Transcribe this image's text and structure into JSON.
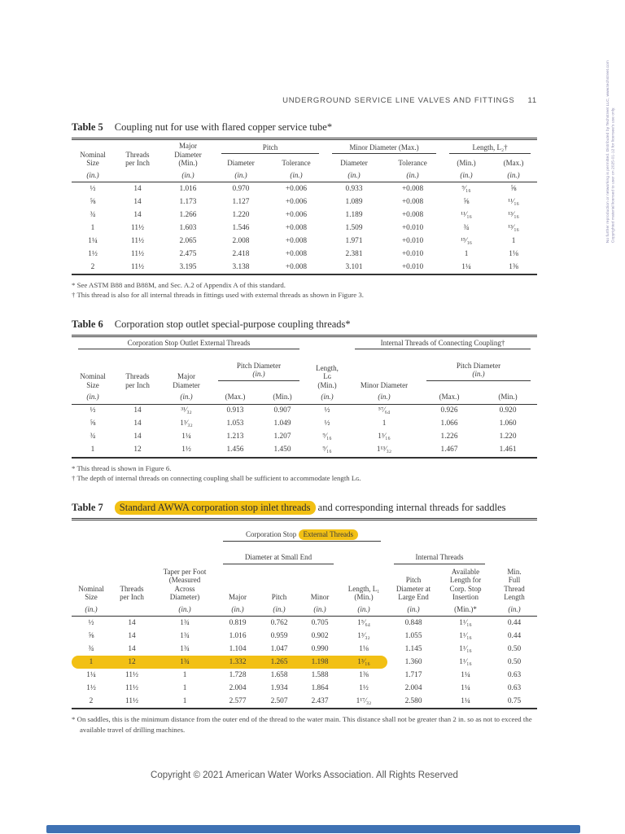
{
  "colors": {
    "highlight": "#f2c014",
    "bar": "#3f72b4"
  },
  "watermark": {
    "line1": "Copyrighted material licensed to user on 2025-01-12 for licensee's use only.",
    "line2": "No further reproduction or networking is permitted. Distributed by Techstreet LLC, www.techstreet.com"
  },
  "header": {
    "title": "UNDERGROUND SERVICE LINE VALVES AND FITTINGS",
    "page": "11"
  },
  "table5": {
    "label": "Table 5",
    "title": "Coupling nut for use with flared copper service tube*",
    "h1": [
      "Nominal\nSize",
      "Threads\nper Inch",
      "Major\nDiameter\n(Min.)",
      "Pitch",
      "Minor Diameter (Max.)",
      "Length, L₂†"
    ],
    "h2": [
      "Diameter",
      "Tolerance",
      "Diameter",
      "Tolerance",
      "(Min.)",
      "(Max.)"
    ],
    "h3": [
      "(in.)",
      "",
      "(in.)",
      "(in.)",
      "(in.)",
      "(in.)",
      "(in.)",
      "(in.)",
      "(in.)"
    ],
    "rows": [
      [
        "½",
        "14",
        "1.016",
        "0.970",
        "+0.006",
        "0.933",
        "+0.008",
        "⁹⁄₁₆",
        "⅝"
      ],
      [
        "⅝",
        "14",
        "1.173",
        "1.127",
        "+0.006",
        "1.089",
        "+0.008",
        "⅝",
        "¹¹⁄₁₆"
      ],
      [
        "¾",
        "14",
        "1.266",
        "1.220",
        "+0.006",
        "1.189",
        "+0.008",
        "¹¹⁄₁₆",
        "¹³⁄₁₆"
      ],
      [
        "1",
        "11½",
        "1.603",
        "1.546",
        "+0.008",
        "1.509",
        "+0.010",
        "¾",
        "¹³⁄₁₆"
      ],
      [
        "1¼",
        "11½",
        "2.065",
        "2.008",
        "+0.008",
        "1.971",
        "+0.010",
        "¹⁵⁄₁₆",
        "1"
      ],
      [
        "1½",
        "11½",
        "2.475",
        "2.418",
        "+0.008",
        "2.381",
        "+0.010",
        "1",
        "1⅛"
      ],
      [
        "2",
        "11½",
        "3.195",
        "3.138",
        "+0.008",
        "3.101",
        "+0.010",
        "1¼",
        "1⅜"
      ]
    ],
    "footnotes": [
      "* See ASTM B88 and B88M, and Sec. A.2 of Appendix A of this standard.",
      "† This thread is also for all internal threads in fittings used with external threads as shown in Figure 3."
    ]
  },
  "table6": {
    "label": "Table 6",
    "title": "Corporation stop outlet special-purpose coupling threads*",
    "grp_ext": "Corporation Stop Outlet External Threads",
    "grp_int": "Internal Threads of Connecting Coupling†",
    "length_label": "Length,\nLɢ\n(Min.)",
    "pd_label": "Pitch Diameter",
    "in_unit": "(in.)",
    "h2": [
      "Nominal\nSize",
      "Threads\nper Inch",
      "Major\nDiameter",
      "Minor Diameter"
    ],
    "h3": [
      "(in.)",
      "",
      "(in.)",
      "(Max.)",
      "(Min.)",
      "(in.)",
      "(in.)",
      "(Max.)",
      "(Min.)"
    ],
    "rows": [
      [
        "½",
        "14",
        "³¹⁄₃₂",
        "0.913",
        "0.907",
        "½",
        "⁵⁷⁄₆₄",
        "0.926",
        "0.920"
      ],
      [
        "⅝",
        "14",
        "1³⁄₃₂",
        "1.053",
        "1.049",
        "½",
        "1",
        "1.066",
        "1.060"
      ],
      [
        "¾",
        "14",
        "1¼",
        "1.213",
        "1.207",
        "⁹⁄₁₆",
        "1³⁄₁₆",
        "1.226",
        "1.220"
      ],
      [
        "1",
        "12",
        "1½",
        "1.456",
        "1.450",
        "⁹⁄₁₆",
        "1¹³⁄₃₂",
        "1.467",
        "1.461"
      ]
    ],
    "footnotes": [
      "* This thread is shown in Figure 6.",
      "† The depth of internal threads on connecting coupling shall be sufficient to accommodate length Lɢ."
    ]
  },
  "table7": {
    "label": "Table 7",
    "title_hl": "Standard AWWA corporation stop inlet threads",
    "title_rest": " and corresponding internal threads for saddles",
    "grp_ext_prefix": "Corporation Stop ",
    "grp_ext_hl": "External Threads",
    "grp_small_end": "Diameter at Small End",
    "grp_int": "Internal Threads",
    "h3": [
      "Nominal\nSize",
      "Threads\nper Inch",
      "Taper per Foot\n(Measured\nAcross\nDiameter)",
      "Major",
      "Pitch",
      "Minor",
      "Length, L₁\n(Min.)",
      "Pitch\nDiameter at\nLarge End",
      "Available\nLength for\nCorp. Stop\nInsertion",
      "Min.\nFull\nThread\nLength"
    ],
    "h4": [
      "(in.)",
      "",
      "(in.)",
      "(in.)",
      "(in.)",
      "(in.)",
      "(in.)",
      "(in.)",
      "(Min.)*",
      "(in.)"
    ],
    "highlight": {
      "row": 3,
      "cols": 7
    },
    "rows": [
      [
        "½",
        "14",
        "1¾",
        "0.819",
        "0.762",
        "0.705",
        "1⁵⁄₆₄",
        "0.848",
        "1¹⁄₁₆",
        "0.44"
      ],
      [
        "⅝",
        "14",
        "1¾",
        "1.016",
        "0.959",
        "0.902",
        "1³⁄₃₂",
        "1.055",
        "1¹⁄₁₆",
        "0.44"
      ],
      [
        "¾",
        "14",
        "1¾",
        "1.104",
        "1.047",
        "0.990",
        "1⅛",
        "1.145",
        "1¹⁄₁₆",
        "0.50"
      ],
      [
        "1",
        "12",
        "1¾",
        "1.332",
        "1.265",
        "1.198",
        "1³⁄₁₆",
        "1.360",
        "1¹⁄₁₆",
        "0.50"
      ],
      [
        "1¼",
        "11½",
        "1",
        "1.728",
        "1.658",
        "1.588",
        "1⅜",
        "1.717",
        "1¼",
        "0.63"
      ],
      [
        "1½",
        "11½",
        "1",
        "2.004",
        "1.934",
        "1.864",
        "1½",
        "2.004",
        "1¼",
        "0.63"
      ],
      [
        "2",
        "11½",
        "1",
        "2.577",
        "2.507",
        "2.437",
        "1¹⁷⁄₃₂",
        "2.580",
        "1¼",
        "0.75"
      ]
    ],
    "footnotes": [
      "* On saddles, this is the minimum distance from the outer end of the thread to the water main. This distance shall not be greater than 2 in. so as not to exceed the available travel of drilling machines."
    ]
  },
  "footer": {
    "copyright": "Copyright © 2021 American Water Works Association. All Rights Reserved"
  }
}
